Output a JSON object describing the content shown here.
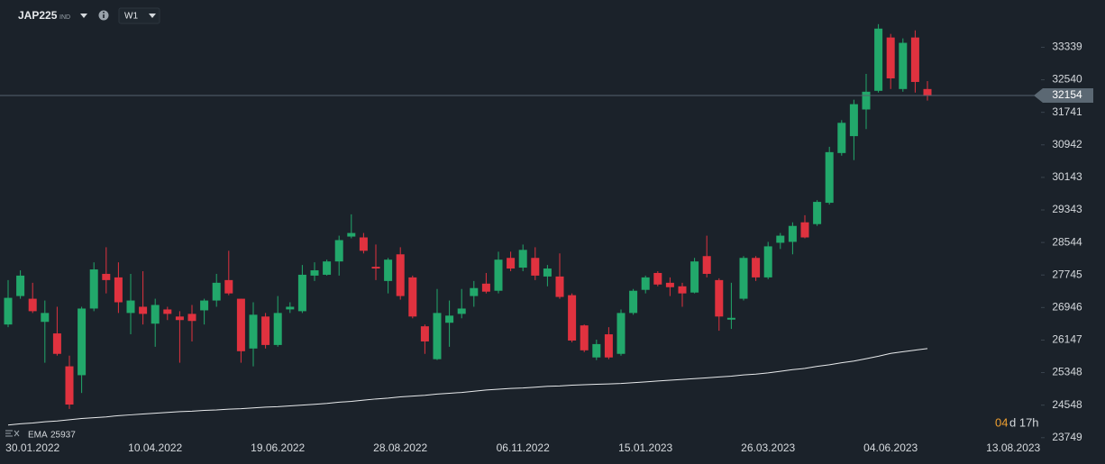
{
  "header": {
    "symbol": "JAP225",
    "exchange": "IND",
    "timeframe": "W1"
  },
  "chart_data": {
    "type": "candlestick",
    "categories": [
      null,
      null,
      "30.01.2022",
      null,
      null,
      null,
      null,
      null,
      null,
      null,
      null,
      null,
      "10.04.2022",
      null,
      null,
      null,
      null,
      null,
      null,
      null,
      null,
      null,
      "19.06.2022",
      null,
      null,
      null,
      null,
      null,
      null,
      null,
      null,
      null,
      "28.08.2022",
      null,
      null,
      null,
      null,
      null,
      null,
      null,
      null,
      null,
      "06.11.2022",
      null,
      null,
      null,
      null,
      null,
      null,
      null,
      null,
      null,
      "15.01.2023",
      null,
      null,
      null,
      null,
      null,
      null,
      null,
      null,
      null,
      "26.03.2023",
      null,
      null,
      null,
      null,
      null,
      null,
      null,
      null,
      null,
      "04.06.2023",
      null,
      null,
      null,
      null,
      null,
      null,
      null,
      null,
      null,
      "13.08.2023",
      null,
      null
    ],
    "open": [
      26529,
      27228,
      27162,
      26594,
      26310,
      25502,
      25284,
      26921,
      27773,
      27686,
      26812,
      26965,
      26550,
      26899,
      26725,
      26790,
      26877,
      27118,
      27620,
      27162,
      25939,
      26725,
      26026,
      26900,
      26856,
      27730,
      27751,
      28078,
      28689,
      28668,
      27947,
      27598,
      28253,
      27686,
      26485,
      25677,
      26572,
      26790,
      27228,
      27533,
      27358,
      28165,
      27926,
      28165,
      27708,
      27708,
      27249,
      26507,
      25720,
      26288,
      25808,
      26812,
      27380,
      27795,
      27554,
      27467,
      27314,
      28209,
      27620,
      26649,
      27162,
      28165,
      27686,
      28537,
      28559,
      29039,
      28995,
      29519,
      30741,
      31156,
      31811,
      32269,
      33579,
      32313,
      33579,
      32313,
      null,
      null,
      null,
      null,
      null,
      null,
      null,
      null,
      null
    ],
    "high": [
      27620,
      27860,
      27554,
      27118,
      26965,
      25764,
      26965,
      28056,
      28427,
      28056,
      27773,
      27838,
      27162,
      26965,
      26856,
      27009,
      27162,
      27773,
      28340,
      27162,
      27075,
      26812,
      27228,
      27075,
      27991,
      28056,
      28122,
      28711,
      29235,
      28777,
      28493,
      28165,
      28427,
      27730,
      26529,
      27402,
      27118,
      27402,
      27598,
      27795,
      28318,
      28318,
      28493,
      28427,
      27991,
      28275,
      27293,
      26529,
      26157,
      26463,
      26899,
      27402,
      27730,
      27838,
      27686,
      27554,
      28165,
      28711,
      27664,
      27554,
      28209,
      28209,
      28559,
      28777,
      29039,
      29213,
      29584,
      30894,
      31549,
      32051,
      32684,
      33907,
      33667,
      33557,
      33754,
      32509,
      null,
      null,
      null,
      null,
      null,
      null,
      null,
      null,
      null
    ],
    "low": [
      26464,
      27162,
      26812,
      25590,
      25764,
      24454,
      24847,
      26856,
      27293,
      26812,
      26288,
      26529,
      25982,
      26638,
      25590,
      26113,
      26529,
      26965,
      27249,
      25590,
      25502,
      25939,
      25982,
      26812,
      26812,
      27598,
      27730,
      27730,
      28646,
      28275,
      27620,
      27293,
      27140,
      26681,
      25808,
      25655,
      25982,
      26681,
      26965,
      27293,
      27293,
      27838,
      27838,
      27620,
      27467,
      27162,
      26092,
      25851,
      25655,
      25677,
      25764,
      26768,
      27293,
      27467,
      27228,
      26965,
      27293,
      27686,
      26376,
      26420,
      27118,
      27598,
      27642,
      28384,
      28253,
      28646,
      28951,
      29475,
      30676,
      30567,
      31331,
      32226,
      32313,
      32247,
      32226,
      32029,
      null,
      null,
      null,
      null,
      null,
      null,
      null,
      null,
      null
    ],
    "close": [
      27184,
      27730,
      26856,
      26812,
      25808,
      24563,
      26921,
      27882,
      27620,
      27075,
      27118,
      26790,
      27009,
      26790,
      26638,
      26616,
      27118,
      27554,
      27293,
      25873,
      26769,
      26026,
      26812,
      26965,
      27751,
      27860,
      28078,
      28602,
      28777,
      28340,
      27904,
      28122,
      27228,
      26725,
      26113,
      26812,
      26747,
      26921,
      27424,
      27336,
      28122,
      27904,
      28362,
      27730,
      27904,
      27206,
      26135,
      25895,
      26048,
      25720,
      26812,
      27358,
      27686,
      27511,
      27445,
      27293,
      28078,
      27773,
      26725,
      26693,
      28165,
      27686,
      28449,
      28711,
      28951,
      28668,
      29541,
      30763,
      31483,
      31941,
      32247,
      33797,
      32575,
      33448,
      32487,
      32154,
      null,
      null,
      null,
      null,
      null,
      null,
      null,
      null,
      null
    ],
    "up_color": "#22a86b",
    "down_color": "#e0323f",
    "series": [
      {
        "name": "EMA",
        "color": "#e8eaec",
        "values": [
          24060,
          24090,
          24110,
          24140,
          24160,
          24190,
          24220,
          24240,
          24260,
          24290,
          24310,
          24330,
          24350,
          24370,
          24390,
          24400,
          24420,
          24430,
          24450,
          24460,
          24480,
          24500,
          24510,
          24530,
          24550,
          24570,
          24590,
          24620,
          24640,
          24670,
          24700,
          24720,
          24750,
          24770,
          24790,
          24820,
          24840,
          24860,
          24890,
          24920,
          24940,
          24960,
          24970,
          24990,
          25010,
          25020,
          25040,
          25050,
          25060,
          25070,
          25080,
          25100,
          25120,
          25140,
          25160,
          25180,
          25200,
          25220,
          25240,
          25260,
          25290,
          25310,
          25340,
          25380,
          25420,
          25450,
          25500,
          25540,
          25590,
          25630,
          25690,
          25750,
          25820,
          25860,
          25900,
          25937,
          null,
          null,
          null,
          null,
          null,
          null,
          null,
          null,
          null
        ]
      }
    ],
    "ylim": [
      23700,
      34500
    ],
    "yticks": [
      23749,
      24548,
      25348,
      26147,
      26946,
      27745,
      28544,
      29343,
      30143,
      30942,
      31741,
      32540,
      33339
    ],
    "countdown": [
      "04",
      "d 17h"
    ]
  }
}
